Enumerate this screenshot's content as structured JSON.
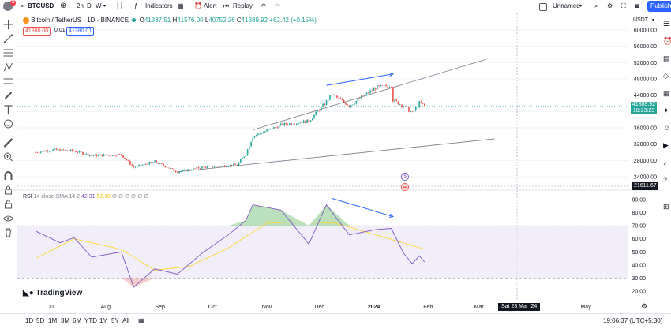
{
  "toolbar": {
    "avatar_badge": "11",
    "symbol": "BTCUSD",
    "interval": "2h",
    "interval_d": "D",
    "interval_w": "W",
    "indicators": "Indicators",
    "alert": "Alert",
    "replay": "Replay",
    "layout_name": "Unnamed",
    "publish": "Publish"
  },
  "legend": {
    "title": "Bitcoin / TetherUS · 1D · BINANCE",
    "o_label": "O",
    "o": "41337.51",
    "h_label": "H",
    "h": "41576.00",
    "l_label": "L",
    "l": "40752.26",
    "c_label": "C",
    "c": "41389.92",
    "change": "+62.42 (+0.15%)",
    "bid": "41380.00",
    "spread": "0.01",
    "ask": "41380.01"
  },
  "rsi_legend": {
    "name": "RSI",
    "params": "14 close SMA 14 2",
    "value": "42.31",
    "ma_value": "52.10",
    "extras": "∅ ∅ ∅ ∅ ∅ ∅"
  },
  "price_axis": {
    "currency": "USDT",
    "last_price": "41389.92",
    "countdown": "10:23:23",
    "crosshair_price": "21611.67"
  },
  "time_axis": {
    "crosshair_date": "Sat 23 Mar '24"
  },
  "brand": "TradingView",
  "ranges": [
    "1D",
    "5D",
    "1M",
    "3M",
    "6M",
    "YTD",
    "1Y",
    "5Y",
    "All"
  ],
  "clock": "19:06:37 (UTC+5:30)",
  "colors": {
    "up": "#26a69a",
    "down": "#ef5350",
    "rsi_line": "#7e57c2",
    "rsi_ma": "#fdd835",
    "annotation": "#2962ff",
    "trendline": "#787b86"
  },
  "chart_data": [
    {
      "type": "candlestick",
      "x_ticks": [
        "Jul",
        "Aug",
        "Sep",
        "Oct",
        "Nov",
        "Dec",
        "2024",
        "Feb",
        "Mar",
        "May"
      ],
      "y_ticks": [
        24000,
        28000,
        32000,
        36000,
        40000,
        44000,
        48000,
        52000,
        56000,
        60000
      ],
      "ylim": [
        21000,
        61000
      ],
      "series": [
        {
          "x": "2023-06-22",
          "close": 30000
        },
        {
          "x": "2023-07-01",
          "close": 30600
        },
        {
          "x": "2023-07-14",
          "close": 30300
        },
        {
          "x": "2023-07-24",
          "close": 29200
        },
        {
          "x": "2023-08-10",
          "close": 29400
        },
        {
          "x": "2023-08-17",
          "close": 26300
        },
        {
          "x": "2023-08-29",
          "close": 27700
        },
        {
          "x": "2023-09-11",
          "close": 25200
        },
        {
          "x": "2023-09-25",
          "close": 26300
        },
        {
          "x": "2023-10-15",
          "close": 26900
        },
        {
          "x": "2023-10-20",
          "close": 29600
        },
        {
          "x": "2023-10-24",
          "close": 33900
        },
        {
          "x": "2023-11-09",
          "close": 36700
        },
        {
          "x": "2023-11-25",
          "close": 37700
        },
        {
          "x": "2023-12-04",
          "close": 41900
        },
        {
          "x": "2023-12-08",
          "close": 44200
        },
        {
          "x": "2023-12-18",
          "close": 41400
        },
        {
          "x": "2024-01-02",
          "close": 45800
        },
        {
          "x": "2024-01-11",
          "close": 46500
        },
        {
          "x": "2024-01-12",
          "close": 42800
        },
        {
          "x": "2024-01-18",
          "close": 41300
        },
        {
          "x": "2024-01-23",
          "close": 39600
        },
        {
          "x": "2024-01-27",
          "close": 42100
        },
        {
          "x": "2024-01-30",
          "close": 41390
        }
      ]
    },
    {
      "type": "line",
      "y_ticks": [
        20,
        30,
        40,
        50,
        60,
        70,
        80,
        90
      ],
      "ylim": [
        15,
        95
      ],
      "series": [
        {
          "name": "RSI",
          "values": [
            {
              "x": "2023-06-22",
              "y": 66
            },
            {
              "x": "2023-07-06",
              "y": 57
            },
            {
              "x": "2023-07-14",
              "y": 61
            },
            {
              "x": "2023-07-24",
              "y": 46
            },
            {
              "x": "2023-08-10",
              "y": 50
            },
            {
              "x": "2023-08-17",
              "y": 23
            },
            {
              "x": "2023-08-29",
              "y": 37
            },
            {
              "x": "2023-09-11",
              "y": 33
            },
            {
              "x": "2023-09-25",
              "y": 49
            },
            {
              "x": "2023-10-10",
              "y": 63
            },
            {
              "x": "2023-10-20",
              "y": 74
            },
            {
              "x": "2023-10-24",
              "y": 86
            },
            {
              "x": "2023-11-09",
              "y": 82
            },
            {
              "x": "2023-11-25",
              "y": 56
            },
            {
              "x": "2023-12-05",
              "y": 86
            },
            {
              "x": "2023-12-18",
              "y": 63
            },
            {
              "x": "2024-01-02",
              "y": 67
            },
            {
              "x": "2024-01-11",
              "y": 68
            },
            {
              "x": "2024-01-18",
              "y": 49
            },
            {
              "x": "2024-01-23",
              "y": 41
            },
            {
              "x": "2024-01-27",
              "y": 47
            },
            {
              "x": "2024-01-30",
              "y": 42.31
            }
          ]
        },
        {
          "name": "SMA",
          "values": [
            {
              "x": "2023-06-22",
              "y": 45
            },
            {
              "x": "2023-07-14",
              "y": 60
            },
            {
              "x": "2023-08-10",
              "y": 52
            },
            {
              "x": "2023-08-29",
              "y": 36
            },
            {
              "x": "2023-09-18",
              "y": 39
            },
            {
              "x": "2023-10-10",
              "y": 53
            },
            {
              "x": "2023-11-01",
              "y": 72
            },
            {
              "x": "2023-11-20",
              "y": 73
            },
            {
              "x": "2023-12-10",
              "y": 72
            },
            {
              "x": "2024-01-05",
              "y": 62
            },
            {
              "x": "2024-01-30",
              "y": 52.1
            }
          ]
        }
      ]
    }
  ]
}
